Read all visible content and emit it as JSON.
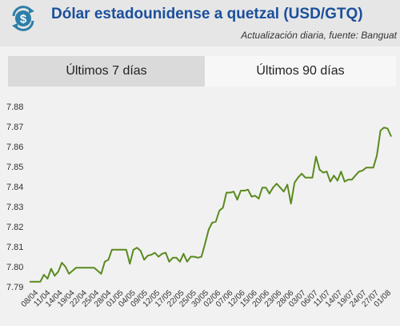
{
  "header": {
    "logo_icon": "dollar-coin-icon",
    "title": "Dólar estadounidense a quetzal (USD/GTQ)",
    "subtitle": "Actualización diaria, fuente: Banguat"
  },
  "tabs": [
    {
      "label": "Últimos 7 días",
      "selected": false
    },
    {
      "label": "Últimos 90 días",
      "selected": true
    }
  ],
  "colors": {
    "line": "#5a8a1e",
    "logo": "#2d7ea8",
    "title": "#1b4f9c"
  },
  "chart_data": {
    "type": "line",
    "title": "",
    "xlabel": "",
    "ylabel": "",
    "ylim": [
      7.79,
      7.88
    ],
    "y_ticks": [
      "7.79",
      "7.80",
      "7.81",
      "7.82",
      "7.83",
      "7.84",
      "7.85",
      "7.86",
      "7.87",
      "7.88"
    ],
    "x_ticks": [
      "08/04",
      "11/04",
      "14/04",
      "19/04",
      "22/04",
      "25/04",
      "28/04",
      "01/05",
      "04/05",
      "09/05",
      "12/05",
      "17/05",
      "22/05",
      "25/05",
      "30/05",
      "02/06",
      "07/06",
      "12/06",
      "15/06",
      "20/06",
      "23/06",
      "28/06",
      "03/07",
      "06/07",
      "11/07",
      "14/07",
      "19/07",
      "24/07",
      "27/07",
      "01/08"
    ],
    "grid": false,
    "series": [
      {
        "values": [
          7.7925,
          7.7925,
          7.7925,
          7.7925,
          7.796,
          7.794,
          7.799,
          7.7955,
          7.7975,
          7.802,
          7.8,
          7.7965,
          7.798,
          7.7995,
          7.7995,
          7.7995,
          7.7995,
          7.7995,
          7.7995,
          7.798,
          7.7965,
          7.8025,
          7.8035,
          7.8085,
          7.8085,
          7.8085,
          7.8085,
          7.8085,
          7.8015,
          7.8085,
          7.8095,
          7.808,
          7.8035,
          7.8055,
          7.806,
          7.807,
          7.805,
          7.8065,
          7.807,
          7.8025,
          7.8045,
          7.8045,
          7.8025,
          7.8065,
          7.8025,
          7.805,
          7.805,
          7.8045,
          7.805,
          7.8115,
          7.8185,
          7.822,
          7.8225,
          7.828,
          7.8295,
          7.837,
          7.837,
          7.8375,
          7.8335,
          7.838,
          7.838,
          7.8385,
          7.835,
          7.8355,
          7.834,
          7.8395,
          7.8395,
          7.8365,
          7.8395,
          7.8415,
          7.8395,
          7.8375,
          7.841,
          7.8315,
          7.842,
          7.8445,
          7.8465,
          7.8445,
          7.8445,
          7.8445,
          7.855,
          7.8485,
          7.847,
          7.8475,
          7.8425,
          7.8455,
          7.843,
          7.8475,
          7.8425,
          7.8435,
          7.8435,
          7.8455,
          7.8475,
          7.848,
          7.8495,
          7.8495,
          7.8495,
          7.8555,
          7.868,
          7.8695,
          7.869,
          7.865
        ]
      }
    ]
  }
}
